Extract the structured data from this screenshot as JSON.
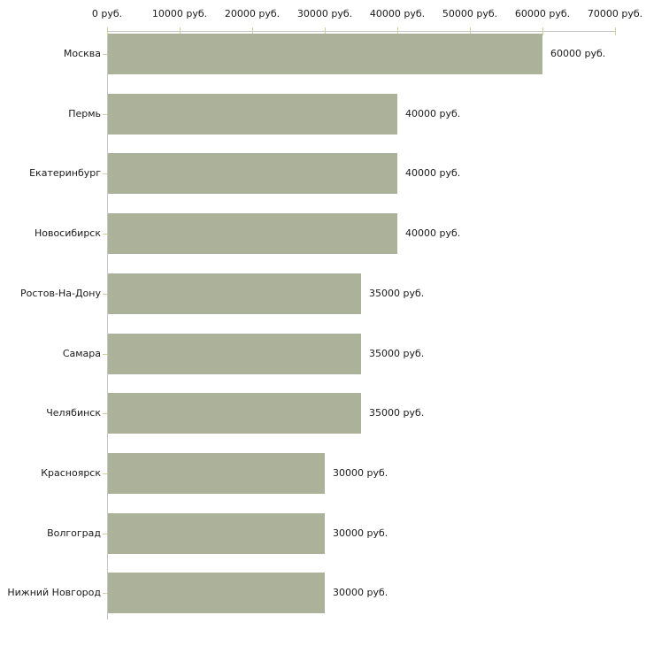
{
  "chart_data": {
    "type": "bar",
    "orientation": "horizontal",
    "categories": [
      "Москва",
      "Пермь",
      "Екатеринбург",
      "Новосибирск",
      "Ростов-На-Дону",
      "Самара",
      "Челябинск",
      "Красноярск",
      "Волгоград",
      "Нижний Новгород"
    ],
    "values": [
      60000,
      40000,
      40000,
      40000,
      35000,
      35000,
      35000,
      30000,
      30000,
      30000
    ],
    "value_labels": [
      "60000 руб.",
      "40000 руб.",
      "40000 руб.",
      "40000 руб.",
      "35000 руб.",
      "35000 руб.",
      "35000 руб.",
      "30000 руб.",
      "30000 руб.",
      "30000 руб."
    ],
    "x_ticks": [
      0,
      10000,
      20000,
      30000,
      40000,
      50000,
      60000,
      70000
    ],
    "x_tick_labels": [
      "0 руб.",
      "10000 руб.",
      "20000 руб.",
      "30000 руб.",
      "40000 руб.",
      "50000 руб.",
      "60000 руб.",
      "70000 руб."
    ],
    "xlim": [
      0,
      70000
    ],
    "unit": "руб.",
    "grid": false,
    "legend": false,
    "colors": {
      "bar": "#acb299",
      "axis_line": "#c5c5c5",
      "tick_mark": "#d2cf9f",
      "text": "#1a1a1a",
      "background": "#ffffff"
    }
  }
}
